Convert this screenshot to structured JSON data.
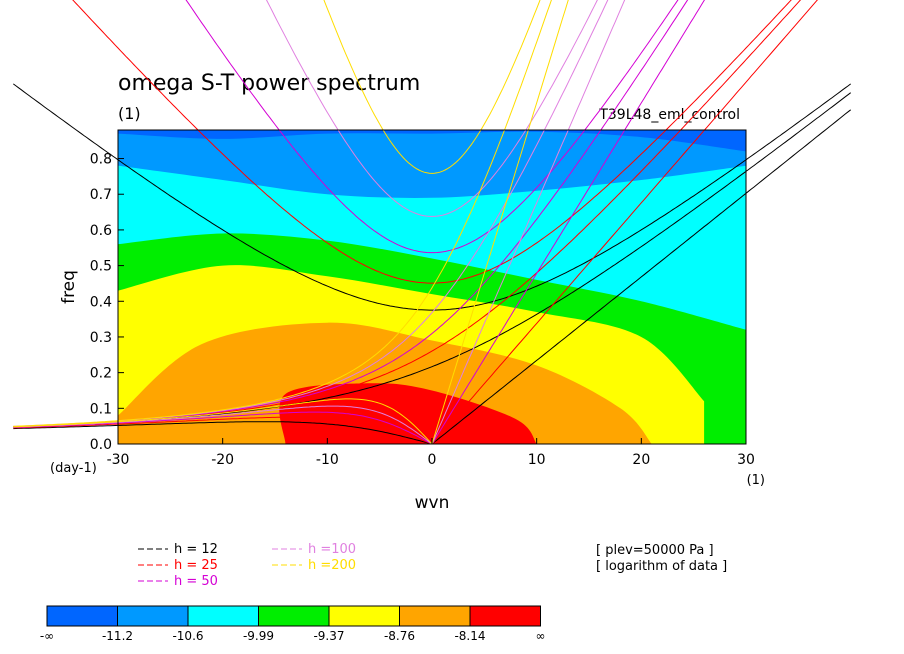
{
  "chart_data": {
    "type": "heatmap",
    "title": "omega S-T power spectrum",
    "title_unit": "(1)",
    "subtitle_right": "T39L48_eml_control",
    "xlabel": "wvn",
    "ylabel": "freq",
    "x_unit": "(1)",
    "y_unit": "(day-1)",
    "xlim": [
      -30,
      30
    ],
    "ylim": [
      0.0,
      0.88
    ],
    "x_ticks": [
      -30,
      -20,
      -10,
      0,
      10,
      20,
      30
    ],
    "x_tick_labels": [
      "-30",
      "-20",
      "-10",
      "0",
      "10",
      "20",
      "30"
    ],
    "y_ticks": [
      0.0,
      0.1,
      0.2,
      0.3,
      0.4,
      0.5,
      0.6,
      0.7,
      0.8
    ],
    "y_tick_labels": [
      "0.0",
      "0.1",
      "0.2",
      "0.3",
      "0.4",
      "0.5",
      "0.6",
      "0.7",
      "0.8"
    ],
    "info_lines": [
      "[ plev=50000 Pa ]",
      "[ logarithm of data ]"
    ],
    "colorbar": {
      "colors": [
        "#0066ff",
        "#0099ff",
        "#00ffff",
        "#00ee00",
        "#ffff00",
        "#ffa500",
        "#ff0000"
      ],
      "labels": [
        "-∞",
        "-11.2",
        "-10.6",
        "-9.99",
        "-9.37",
        "-8.76",
        "-8.14",
        "∞"
      ]
    },
    "filled_levels": [
      {
        "color": "#0099ff",
        "level": "-11.2",
        "boundary_top": [
          [
            -30,
            0.87
          ],
          [
            -20,
            0.855
          ],
          [
            -10,
            0.87
          ],
          [
            0,
            0.87
          ],
          [
            10,
            0.875
          ],
          [
            20,
            0.86
          ],
          [
            30,
            0.82
          ]
        ]
      },
      {
        "color": "#00ffff",
        "level": "-10.6",
        "boundary_top": [
          [
            -30,
            0.78
          ],
          [
            -20,
            0.74
          ],
          [
            -10,
            0.7
          ],
          [
            0,
            0.69
          ],
          [
            10,
            0.71
          ],
          [
            20,
            0.74
          ],
          [
            30,
            0.78
          ]
        ]
      },
      {
        "color": "#00ee00",
        "level": "-9.99",
        "boundary_top": [
          [
            -30,
            0.56
          ],
          [
            -20,
            0.59
          ],
          [
            -10,
            0.57
          ],
          [
            0,
            0.52
          ],
          [
            10,
            0.46
          ],
          [
            20,
            0.4
          ],
          [
            30,
            0.32
          ]
        ]
      },
      {
        "color": "#ffff00",
        "level": "-9.37",
        "boundary_top": [
          [
            -30,
            0.43
          ],
          [
            -20,
            0.5
          ],
          [
            -10,
            0.47
          ],
          [
            0,
            0.42
          ],
          [
            10,
            0.37
          ],
          [
            20,
            0.3
          ],
          [
            26,
            0.12
          ]
        ]
      },
      {
        "color": "#ffa500",
        "level": "-8.76",
        "boundary_top": [
          [
            -30,
            0.08
          ],
          [
            -22,
            0.28
          ],
          [
            -10,
            0.34
          ],
          [
            0,
            0.29
          ],
          [
            10,
            0.22
          ],
          [
            18,
            0.1
          ],
          [
            21,
            0.0
          ]
        ]
      },
      {
        "color": "#ff0000",
        "level": "-8.14",
        "boundary_top": [
          [
            -14,
            0.0
          ],
          [
            -14,
            0.14
          ],
          [
            -6,
            0.17
          ],
          [
            0,
            0.15
          ],
          [
            8,
            0.07
          ],
          [
            10,
            0.0
          ]
        ]
      }
    ],
    "series": [
      {
        "name": "h = 12",
        "color": "#000000",
        "h": 12
      },
      {
        "name": "h = 25",
        "color": "#ff0000",
        "h": 25
      },
      {
        "name": "h = 50",
        "color": "#d400d4",
        "h": 50
      },
      {
        "name": "h =100",
        "color": "#e080e0",
        "h": 100
      },
      {
        "name": "h =200",
        "color": "#ffdd00",
        "h": 200
      }
    ],
    "grid": false,
    "legend_placement": "bottom-left"
  }
}
